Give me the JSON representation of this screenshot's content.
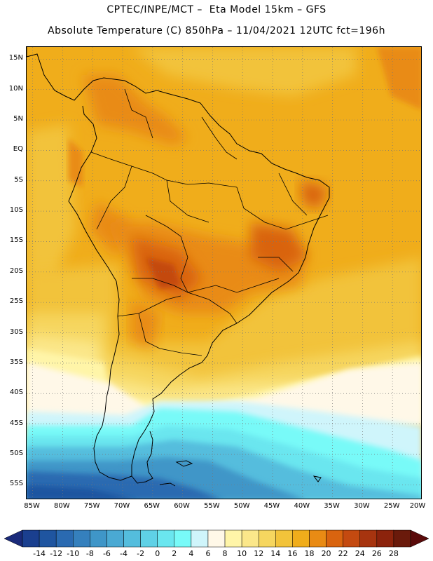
{
  "header": {
    "line1": "CPTEC/INPE/MCT –  Eta Model 15km – GFS",
    "line2": "Absolute Temperature (C) 850hPa – 11/04/2021 12UTC fct=196h"
  },
  "map": {
    "lat_labels": [
      "15N",
      "10N",
      "5N",
      "EQ",
      "5S",
      "10S",
      "15S",
      "20S",
      "25S",
      "30S",
      "35S",
      "40S",
      "45S",
      "50S",
      "55S"
    ],
    "lat_values": [
      15,
      10,
      5,
      0,
      -5,
      -10,
      -15,
      -20,
      -25,
      -30,
      -35,
      -40,
      -45,
      -50,
      -55
    ],
    "lon_labels": [
      "85W",
      "80W",
      "75W",
      "70W",
      "65W",
      "60W",
      "55W",
      "50W",
      "45W",
      "40W",
      "35W",
      "30W",
      "25W",
      "20W"
    ],
    "lon_values": [
      -85,
      -80,
      -75,
      -70,
      -65,
      -60,
      -55,
      -50,
      -45,
      -40,
      -35,
      -30,
      -25,
      -20
    ],
    "lat_range": [
      -57.5,
      17
    ],
    "lon_range": [
      -86,
      -20
    ],
    "grid": "dotted"
  },
  "colorbar": {
    "labels": [
      "-14",
      "-12",
      "-10",
      "-8",
      "-6",
      "-4",
      "-2",
      "0",
      "2",
      "4",
      "6",
      "8",
      "10",
      "12",
      "14",
      "16",
      "18",
      "20",
      "22",
      "24",
      "26",
      "28"
    ],
    "colors": [
      "#1a3f8f",
      "#1f55a0",
      "#2a6ab1",
      "#3580bd",
      "#3f96c8",
      "#4aa9d3",
      "#54bddd",
      "#5fd1e6",
      "#6ae6ef",
      "#78faf8",
      "#cff5fb",
      "#fff8e8",
      "#fff5a8",
      "#fbe78a",
      "#f6d65f",
      "#f2c33a",
      "#f0ad1b",
      "#e98b14",
      "#d9640f",
      "#c44a10",
      "#a7340f",
      "#8c230c",
      "#6a1a0b"
    ],
    "left_arrow_color": "#1a2a7a",
    "right_arrow_color": "#5a0a0a"
  }
}
